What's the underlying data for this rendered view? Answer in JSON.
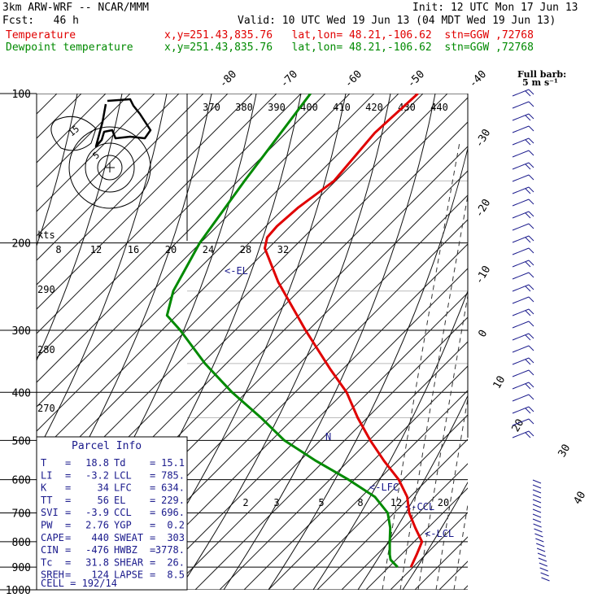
{
  "header": {
    "model": "3km ARW-WRF -- NCAR/MMM",
    "init": "Init: 12 UTC Mon 17 Jun 13",
    "fcst": "Fcst:   46 h",
    "valid": "Valid: 10 UTC Wed 19 Jun 13 (04 MDT Wed 19 Jun 13)",
    "temp_label": "Temperature",
    "dew_label": "Dewpoint temperature",
    "location": "x,y=251.43,835.76   lat,lon= 48.21,-106.62  stn=GGW ,72768"
  },
  "colors": {
    "temperature": "#e00000",
    "dewpoint": "#008a00",
    "text_blue": "#1a1a8c"
  },
  "chart_data": {
    "type": "line",
    "title": "3km ARW-WRF -- NCAR/MMM",
    "pressure_labels": [
      "100",
      "200",
      "300",
      "400",
      "500",
      "600",
      "700",
      "800",
      "900",
      "1000"
    ],
    "isotherm_top_labels": [
      "-80",
      "-70",
      "-60",
      "-50",
      "-40"
    ],
    "isotherm_right_labels": [
      "-30",
      "-20",
      "-10",
      "0",
      "10",
      "20",
      "30",
      "40"
    ],
    "adiabat_labels": [
      "370",
      "380",
      "390",
      "400",
      "410",
      "420",
      "430",
      "440"
    ],
    "adiabat_left_labels": [
      "290",
      "280",
      "270"
    ],
    "wind_speed_axis": {
      "unit": "kts",
      "ticks": [
        "8",
        "12",
        "16",
        "20",
        "24",
        "28",
        "32"
      ]
    },
    "mixing_ratio_labels": [
      "2",
      "3",
      "5",
      "8",
      "12",
      "20"
    ],
    "level_labels": [
      "<-EL",
      "<-LFC",
      "<-CCL",
      "<-LCL"
    ],
    "barb_legend": [
      "Full barb:",
      "5 m s⁻¹"
    ],
    "series": [
      {
        "name": "Temperature",
        "points": [
          [
            100,
            -52
          ],
          [
            120,
            -58
          ],
          [
            150,
            -62
          ],
          [
            170,
            -68
          ],
          [
            185,
            -71
          ],
          [
            195,
            -72
          ],
          [
            205,
            -71
          ],
          [
            240,
            -62
          ],
          [
            300,
            -47
          ],
          [
            360,
            -34
          ],
          [
            400,
            -26
          ],
          [
            450,
            -19
          ],
          [
            500,
            -12
          ],
          [
            550,
            -5
          ],
          [
            600,
            2
          ],
          [
            650,
            7
          ],
          [
            700,
            10
          ],
          [
            750,
            14
          ],
          [
            800,
            18
          ],
          [
            850,
            18.5
          ],
          [
            900,
            18.8
          ]
        ]
      },
      {
        "name": "Dewpoint temperature",
        "points": [
          [
            100,
            -82
          ],
          [
            150,
            -87
          ],
          [
            200,
            -90
          ],
          [
            250,
            -90
          ],
          [
            280,
            -88
          ],
          [
            300,
            -82
          ],
          [
            350,
            -70
          ],
          [
            400,
            -58
          ],
          [
            450,
            -46
          ],
          [
            500,
            -36
          ],
          [
            550,
            -24
          ],
          [
            600,
            -12
          ],
          [
            650,
            -2
          ],
          [
            700,
            4
          ],
          [
            750,
            7
          ],
          [
            800,
            9
          ],
          [
            850,
            11
          ],
          [
            870,
            12
          ],
          [
            900,
            15.1
          ]
        ]
      }
    ],
    "hodograph": {
      "ring_labels": [
        "5",
        "15"
      ]
    }
  },
  "parcel_info": {
    "title": "Parcel Info",
    "rows": [
      [
        "T",
        "18.8",
        "Td",
        "15.1"
      ],
      [
        "LI",
        "-3.2",
        "LCL",
        "785."
      ],
      [
        "K",
        "34",
        "LFC",
        "634."
      ],
      [
        "TT",
        "56",
        "EL",
        "229."
      ],
      [
        "SVI",
        "-3.9",
        "CCL",
        "696."
      ],
      [
        "PW",
        "2.76",
        "YGP",
        "0.2"
      ],
      [
        "CAPE",
        "440",
        "SWEAT",
        "303"
      ],
      [
        "CIN",
        "-476",
        "HWBZ",
        "3778."
      ],
      [
        "Tc",
        "31.8",
        "SHEAR",
        "26."
      ],
      [
        "SREH",
        "124",
        "LAPSE",
        "8.5"
      ]
    ],
    "cell": "CELL = 192/14"
  }
}
